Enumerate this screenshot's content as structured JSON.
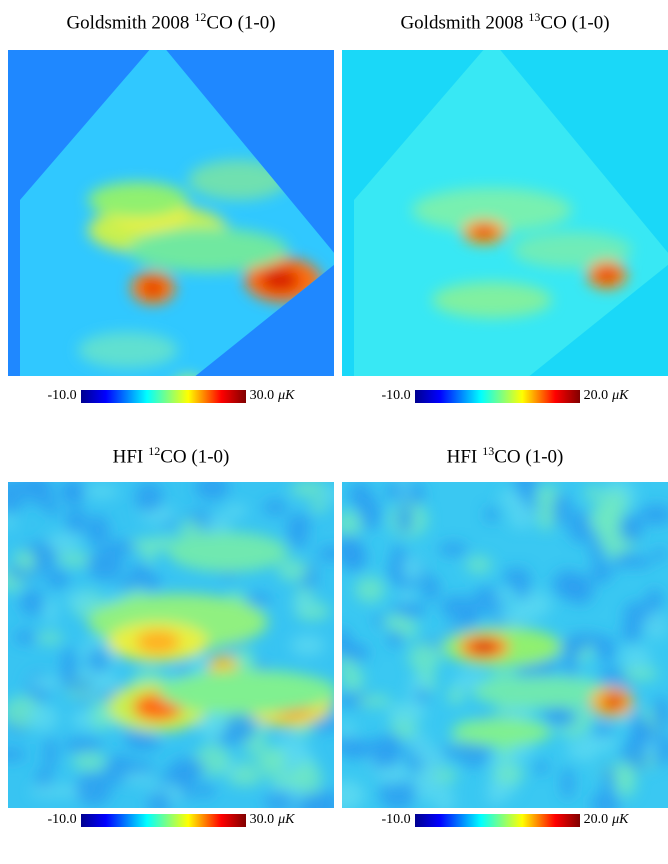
{
  "panels": [
    {
      "title": [
        "Goldsmith 2008",
        "12",
        "CO (1-0)"
      ],
      "colorbar": {
        "min": "-10.0",
        "max": "30.0",
        "unit": "μK"
      }
    },
    {
      "title": [
        "Goldsmith 2008",
        "13",
        "CO (1-0)"
      ],
      "colorbar": {
        "min": "-10.0",
        "max": "20.0",
        "unit": "μK"
      }
    },
    {
      "title": [
        "HFI",
        "12",
        "CO (1-0)"
      ],
      "colorbar": {
        "min": "-10.0",
        "max": "30.0",
        "unit": "μK"
      }
    },
    {
      "title": [
        "HFI",
        "13",
        "CO (1-0)"
      ],
      "colorbar": {
        "min": "-10.0",
        "max": "20.0",
        "unit": "μK"
      }
    }
  ]
}
